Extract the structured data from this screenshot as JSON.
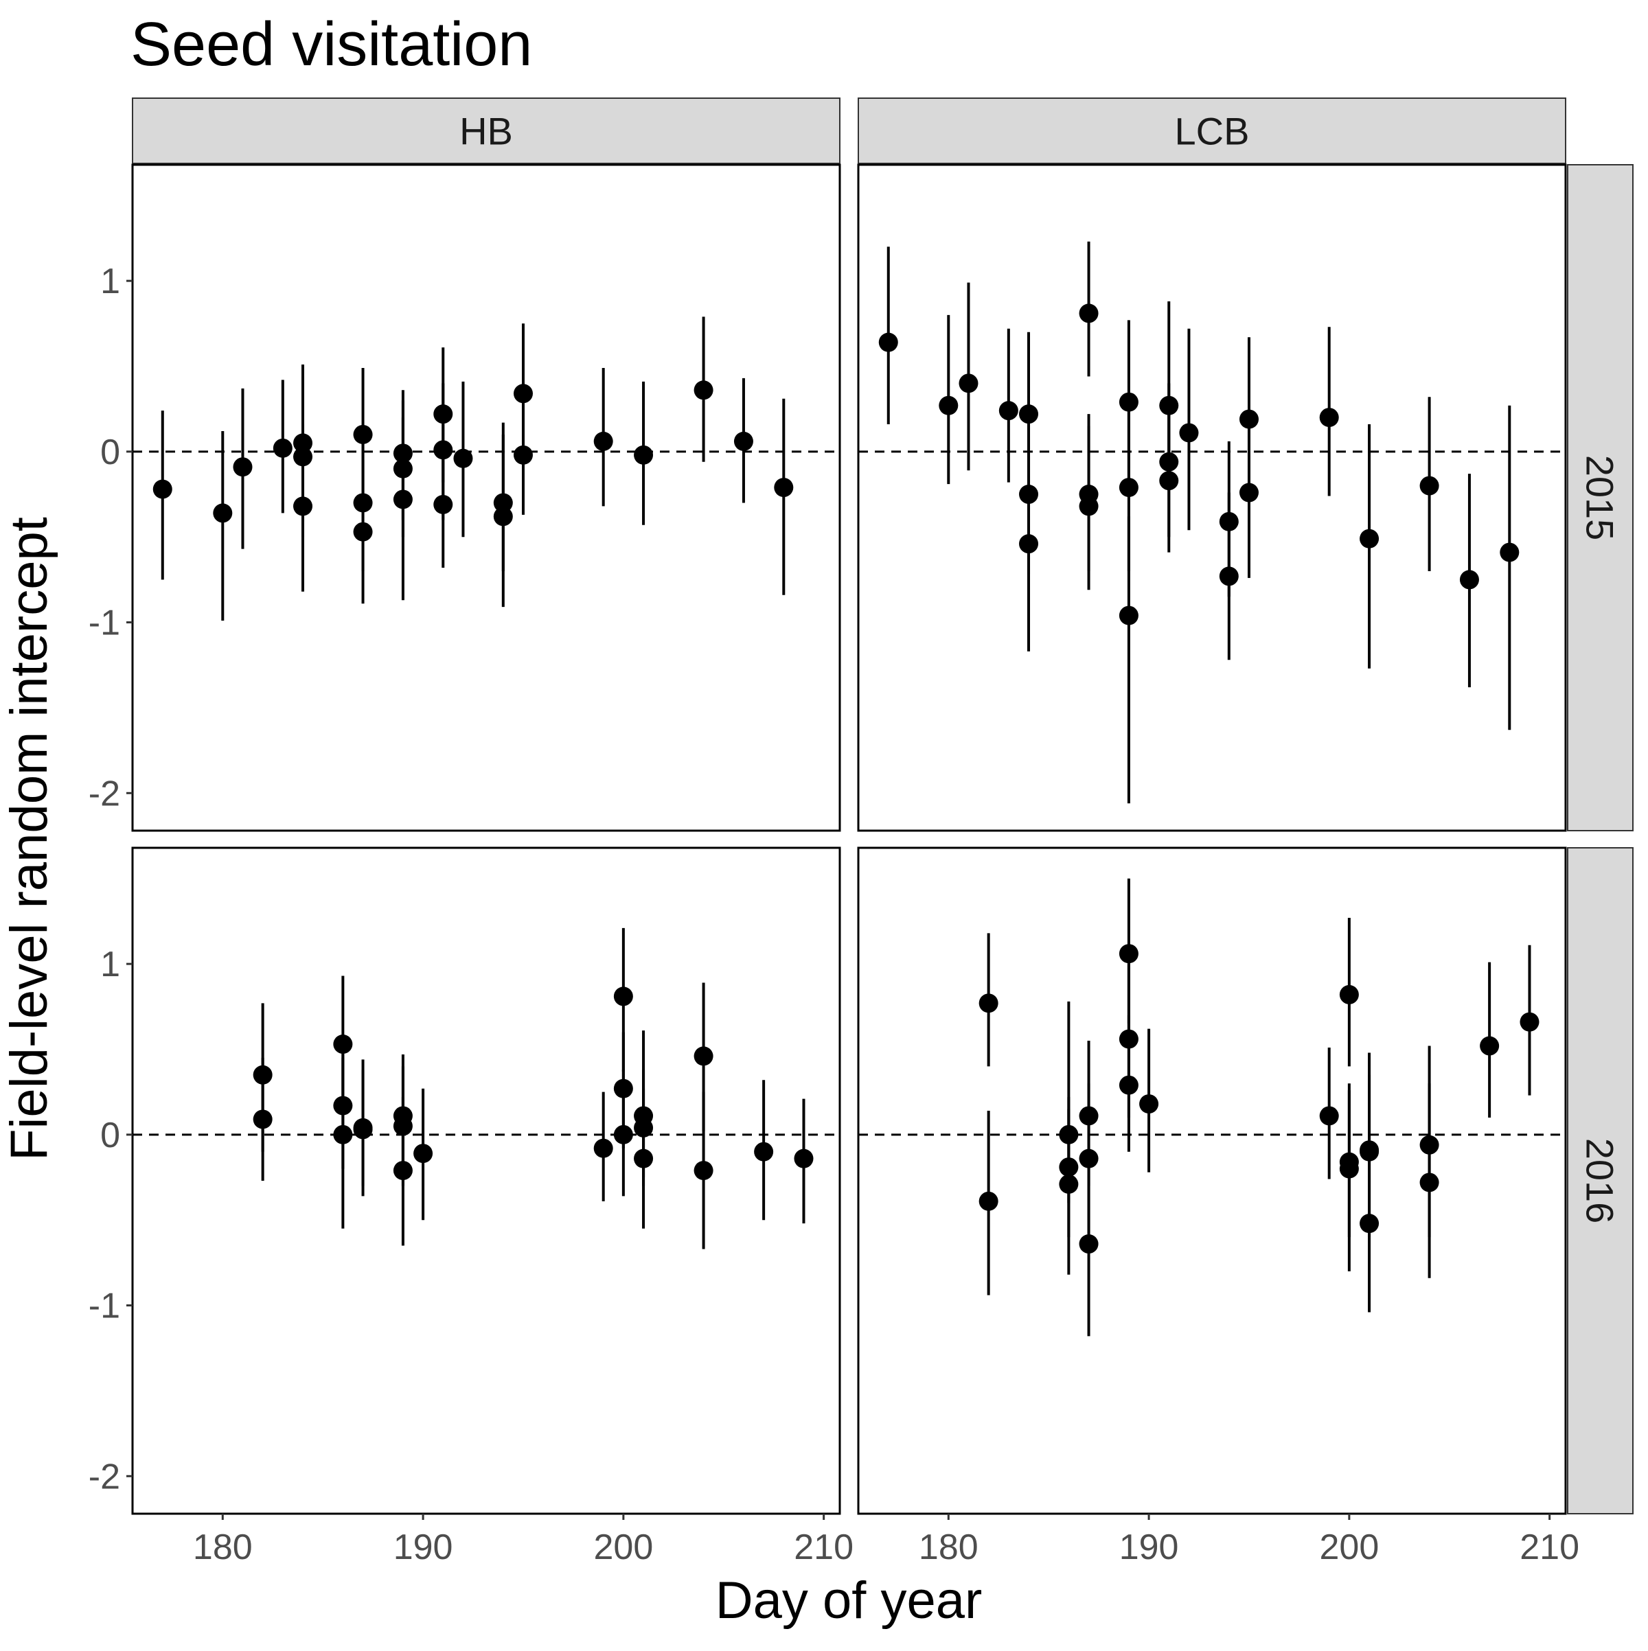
{
  "chart_data": {
    "type": "scatter",
    "title": "Seed visitation",
    "xlabel": "Day of year",
    "ylabel": "Field-level random intercept",
    "xlim": [
      175.5,
      210.8
    ],
    "ylim": [
      -2.22,
      1.68
    ],
    "xticks": [
      180,
      190,
      200,
      210
    ],
    "yticks": [
      -2,
      -1,
      0,
      1
    ],
    "reference_line": 0,
    "col_facets": [
      "HB",
      "LCB"
    ],
    "row_facets": [
      "2015",
      "2016"
    ],
    "colors": {
      "point": "#000000",
      "strip_fill": "#d9d9d9",
      "strip_border": "#333333",
      "panel_border": "#000000"
    },
    "panels": [
      {
        "col": "HB",
        "row": "2015",
        "points": [
          {
            "x": 177,
            "y": -0.22,
            "lo": -0.75,
            "hi": 0.24
          },
          {
            "x": 180,
            "y": -0.36,
            "lo": -0.99,
            "hi": 0.12
          },
          {
            "x": 181,
            "y": -0.09,
            "lo": -0.57,
            "hi": 0.37
          },
          {
            "x": 183,
            "y": 0.02,
            "lo": -0.36,
            "hi": 0.42
          },
          {
            "x": 184,
            "y": 0.05,
            "lo": -0.41,
            "hi": 0.51
          },
          {
            "x": 184,
            "y": -0.03,
            "lo": -0.5,
            "hi": 0.44
          },
          {
            "x": 184,
            "y": -0.32,
            "lo": -0.82,
            "hi": 0.16
          },
          {
            "x": 187,
            "y": 0.1,
            "lo": -0.3,
            "hi": 0.49
          },
          {
            "x": 187,
            "y": -0.3,
            "lo": -0.7,
            "hi": 0.1
          },
          {
            "x": 187,
            "y": -0.47,
            "lo": -0.89,
            "hi": -0.05
          },
          {
            "x": 189,
            "y": -0.01,
            "lo": -0.4,
            "hi": 0.36
          },
          {
            "x": 189,
            "y": -0.1,
            "lo": -0.5,
            "hi": 0.3
          },
          {
            "x": 189,
            "y": -0.28,
            "lo": -0.87,
            "hi": 0.2
          },
          {
            "x": 191,
            "y": 0.22,
            "lo": -0.18,
            "hi": 0.61
          },
          {
            "x": 191,
            "y": 0.01,
            "lo": -0.4,
            "hi": 0.4
          },
          {
            "x": 191,
            "y": -0.31,
            "lo": -0.68,
            "hi": 0.06
          },
          {
            "x": 192,
            "y": -0.04,
            "lo": -0.5,
            "hi": 0.41
          },
          {
            "x": 194,
            "y": -0.3,
            "lo": -0.7,
            "hi": 0.17
          },
          {
            "x": 194,
            "y": -0.38,
            "lo": -0.91,
            "hi": 0.1
          },
          {
            "x": 195,
            "y": 0.34,
            "lo": -0.08,
            "hi": 0.75
          },
          {
            "x": 195,
            "y": -0.02,
            "lo": -0.37,
            "hi": 0.33
          },
          {
            "x": 199,
            "y": 0.06,
            "lo": -0.32,
            "hi": 0.49
          },
          {
            "x": 201,
            "y": -0.02,
            "lo": -0.43,
            "hi": 0.41
          },
          {
            "x": 204,
            "y": 0.36,
            "lo": -0.06,
            "hi": 0.79
          },
          {
            "x": 206,
            "y": 0.06,
            "lo": -0.3,
            "hi": 0.43
          },
          {
            "x": 208,
            "y": -0.21,
            "lo": -0.84,
            "hi": 0.31
          }
        ]
      },
      {
        "col": "LCB",
        "row": "2015",
        "points": [
          {
            "x": 177,
            "y": 0.64,
            "lo": 0.16,
            "hi": 1.2
          },
          {
            "x": 180,
            "y": 0.27,
            "lo": -0.19,
            "hi": 0.8
          },
          {
            "x": 181,
            "y": 0.4,
            "lo": -0.11,
            "hi": 0.99
          },
          {
            "x": 183,
            "y": 0.24,
            "lo": -0.18,
            "hi": 0.72
          },
          {
            "x": 184,
            "y": 0.22,
            "lo": -0.25,
            "hi": 0.7
          },
          {
            "x": 184,
            "y": -0.25,
            "lo": -0.72,
            "hi": 0.22
          },
          {
            "x": 184,
            "y": -0.54,
            "lo": -1.17,
            "hi": -0.02
          },
          {
            "x": 187,
            "y": 0.81,
            "lo": 0.44,
            "hi": 1.23
          },
          {
            "x": 187,
            "y": -0.25,
            "lo": -0.7,
            "hi": 0.22
          },
          {
            "x": 187,
            "y": -0.32,
            "lo": -0.81,
            "hi": 0.15
          },
          {
            "x": 189,
            "y": 0.29,
            "lo": -0.18,
            "hi": 0.77
          },
          {
            "x": 189,
            "y": -0.21,
            "lo": -0.7,
            "hi": 0.25
          },
          {
            "x": 189,
            "y": -0.96,
            "lo": -2.06,
            "hi": -0.38
          },
          {
            "x": 191,
            "y": 0.27,
            "lo": -0.21,
            "hi": 0.88
          },
          {
            "x": 191,
            "y": -0.06,
            "lo": -0.5,
            "hi": 0.4
          },
          {
            "x": 191,
            "y": -0.17,
            "lo": -0.59,
            "hi": 0.26
          },
          {
            "x": 192,
            "y": 0.11,
            "lo": -0.46,
            "hi": 0.72
          },
          {
            "x": 194,
            "y": -0.41,
            "lo": -0.85,
            "hi": 0.06
          },
          {
            "x": 194,
            "y": -0.73,
            "lo": -1.22,
            "hi": -0.24
          },
          {
            "x": 195,
            "y": 0.19,
            "lo": -0.26,
            "hi": 0.67
          },
          {
            "x": 195,
            "y": -0.24,
            "lo": -0.74,
            "hi": 0.25
          },
          {
            "x": 199,
            "y": 0.2,
            "lo": -0.26,
            "hi": 0.73
          },
          {
            "x": 201,
            "y": -0.51,
            "lo": -1.27,
            "hi": 0.16
          },
          {
            "x": 204,
            "y": -0.2,
            "lo": -0.7,
            "hi": 0.32
          },
          {
            "x": 206,
            "y": -0.75,
            "lo": -1.38,
            "hi": -0.13
          },
          {
            "x": 208,
            "y": -0.59,
            "lo": -1.63,
            "hi": 0.27
          }
        ]
      },
      {
        "col": "HB",
        "row": "2016",
        "points": [
          {
            "x": 182,
            "y": 0.35,
            "lo": -0.1,
            "hi": 0.77
          },
          {
            "x": 182,
            "y": 0.09,
            "lo": -0.27,
            "hi": 0.45
          },
          {
            "x": 186,
            "y": 0.53,
            "lo": 0.15,
            "hi": 0.93
          },
          {
            "x": 186,
            "y": 0.17,
            "lo": -0.2,
            "hi": 0.55
          },
          {
            "x": 186,
            "y": 0.0,
            "lo": -0.55,
            "hi": 0.45
          },
          {
            "x": 187,
            "y": 0.04,
            "lo": -0.36,
            "hi": 0.44
          },
          {
            "x": 187,
            "y": 0.03,
            "lo": -0.3,
            "hi": 0.38
          },
          {
            "x": 189,
            "y": 0.11,
            "lo": -0.25,
            "hi": 0.47
          },
          {
            "x": 189,
            "y": 0.05,
            "lo": -0.3,
            "hi": 0.4
          },
          {
            "x": 189,
            "y": -0.21,
            "lo": -0.65,
            "hi": 0.22
          },
          {
            "x": 190,
            "y": -0.11,
            "lo": -0.5,
            "hi": 0.27
          },
          {
            "x": 199,
            "y": -0.08,
            "lo": -0.39,
            "hi": 0.25
          },
          {
            "x": 200,
            "y": 0.81,
            "lo": 0.37,
            "hi": 1.21
          },
          {
            "x": 200,
            "y": 0.27,
            "lo": -0.08,
            "hi": 0.6
          },
          {
            "x": 200,
            "y": 0.0,
            "lo": -0.36,
            "hi": 0.38
          },
          {
            "x": 201,
            "y": 0.11,
            "lo": -0.25,
            "hi": 0.61
          },
          {
            "x": 201,
            "y": 0.04,
            "lo": -0.3,
            "hi": 0.38
          },
          {
            "x": 201,
            "y": -0.14,
            "lo": -0.55,
            "hi": 0.27
          },
          {
            "x": 204,
            "y": 0.46,
            "lo": 0.02,
            "hi": 0.89
          },
          {
            "x": 204,
            "y": -0.21,
            "lo": -0.67,
            "hi": 0.25
          },
          {
            "x": 207,
            "y": -0.1,
            "lo": -0.5,
            "hi": 0.32
          },
          {
            "x": 209,
            "y": -0.14,
            "lo": -0.52,
            "hi": 0.21
          }
        ]
      },
      {
        "col": "LCB",
        "row": "2016",
        "points": [
          {
            "x": 182,
            "y": 0.77,
            "lo": 0.4,
            "hi": 1.18
          },
          {
            "x": 182,
            "y": -0.39,
            "lo": -0.94,
            "hi": 0.14
          },
          {
            "x": 186,
            "y": 0.0,
            "lo": -0.4,
            "hi": 0.78
          },
          {
            "x": 186,
            "y": -0.19,
            "lo": -0.6,
            "hi": 0.22
          },
          {
            "x": 186,
            "y": -0.29,
            "lo": -0.82,
            "hi": 0.15
          },
          {
            "x": 187,
            "y": 0.11,
            "lo": -0.3,
            "hi": 0.55
          },
          {
            "x": 187,
            "y": -0.14,
            "lo": -0.58,
            "hi": 0.3
          },
          {
            "x": 187,
            "y": -0.64,
            "lo": -1.18,
            "hi": -0.16
          },
          {
            "x": 189,
            "y": 1.06,
            "lo": 0.65,
            "hi": 1.5
          },
          {
            "x": 189,
            "y": 0.56,
            "lo": 0.1,
            "hi": 1.0
          },
          {
            "x": 189,
            "y": 0.29,
            "lo": -0.1,
            "hi": 0.7
          },
          {
            "x": 190,
            "y": 0.18,
            "lo": -0.22,
            "hi": 0.62
          },
          {
            "x": 199,
            "y": 0.11,
            "lo": -0.26,
            "hi": 0.51
          },
          {
            "x": 200,
            "y": 0.82,
            "lo": 0.4,
            "hi": 1.27
          },
          {
            "x": 200,
            "y": -0.16,
            "lo": -0.6,
            "hi": 0.3
          },
          {
            "x": 200,
            "y": -0.2,
            "lo": -0.8,
            "hi": 0.26
          },
          {
            "x": 201,
            "y": -0.09,
            "lo": -0.6,
            "hi": 0.48
          },
          {
            "x": 201,
            "y": -0.1,
            "lo": -0.55,
            "hi": 0.35
          },
          {
            "x": 201,
            "y": -0.52,
            "lo": -1.04,
            "hi": -0.05
          },
          {
            "x": 204,
            "y": -0.06,
            "lo": -0.6,
            "hi": 0.52
          },
          {
            "x": 204,
            "y": -0.28,
            "lo": -0.84,
            "hi": 0.3
          },
          {
            "x": 207,
            "y": 0.52,
            "lo": 0.1,
            "hi": 1.01
          },
          {
            "x": 209,
            "y": 0.66,
            "lo": 0.23,
            "hi": 1.11
          }
        ]
      }
    ]
  }
}
